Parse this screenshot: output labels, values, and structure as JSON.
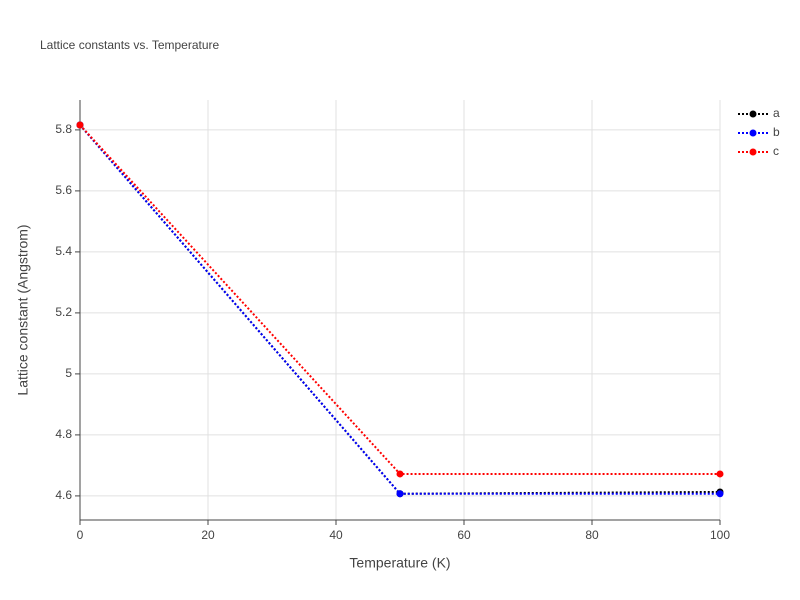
{
  "chart_data": {
    "type": "line",
    "title": "Lattice constants vs. Temperature",
    "x_label": "Temperature (K)",
    "y_label": "Lattice constant (Angstrom)",
    "x": [
      0,
      50,
      100
    ],
    "series": [
      {
        "name": "a",
        "color": "#000000",
        "values": [
          5.816,
          4.607,
          4.613
        ]
      },
      {
        "name": "b",
        "color": "#0000ff",
        "values": [
          5.816,
          4.607,
          4.607
        ]
      },
      {
        "name": "c",
        "color": "#ff0000",
        "values": [
          5.816,
          4.672,
          4.672
        ]
      }
    ],
    "xlim": [
      0,
      100
    ],
    "xticks": [
      0,
      20,
      40,
      60,
      80,
      100
    ],
    "ylim": [
      4.521,
      5.898
    ],
    "yticks": [
      4.6,
      4.8,
      5,
      5.2,
      5.4,
      5.6,
      5.8
    ],
    "grid": true,
    "legend": "top-right"
  }
}
